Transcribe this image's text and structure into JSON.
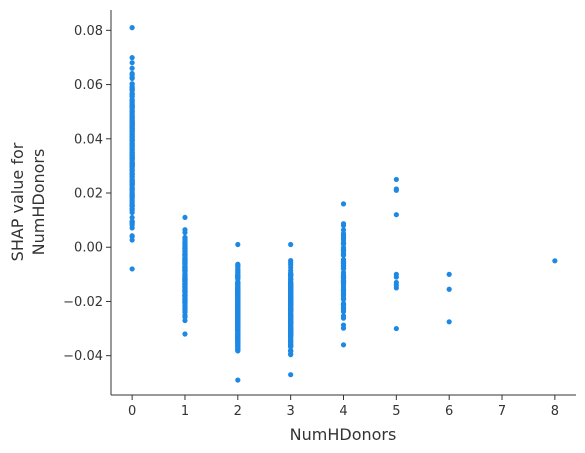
{
  "chart_data": {
    "type": "scatter",
    "xlabel": "NumHDonors",
    "ylabel_lines": [
      "SHAP value for",
      "NumHDonors"
    ],
    "xlim": [
      -0.4,
      8.4
    ],
    "ylim": [
      -0.0545,
      0.0875
    ],
    "x_ticks": [
      0,
      1,
      2,
      3,
      4,
      5,
      6,
      7,
      8
    ],
    "y_ticks": [
      -0.04,
      -0.02,
      0.0,
      0.02,
      0.04,
      0.06,
      0.08
    ],
    "y_tick_labels": [
      "−0.04",
      "−0.02",
      "0.00",
      "0.02",
      "0.04",
      "0.06",
      "0.08"
    ],
    "grid": false,
    "point_color": "#1e88e5",
    "groups": [
      {
        "x": 0,
        "y_min": -0.008,
        "y_max": 0.081,
        "count": 220
      },
      {
        "x": 1,
        "y_min": -0.032,
        "y_max": 0.011,
        "count": 200
      },
      {
        "x": 2,
        "y_min": -0.049,
        "y_max": 0.001,
        "count": 260
      },
      {
        "x": 3,
        "y_min": -0.047,
        "y_max": 0.001,
        "count": 230
      },
      {
        "x": 4,
        "y_min": -0.036,
        "y_max": 0.016,
        "count": 90
      }
    ],
    "points": [
      {
        "x": 5,
        "y": 0.025
      },
      {
        "x": 5,
        "y": 0.0215
      },
      {
        "x": 5,
        "y": 0.021
      },
      {
        "x": 5,
        "y": 0.012
      },
      {
        "x": 5,
        "y": -0.01
      },
      {
        "x": 5,
        "y": -0.011
      },
      {
        "x": 5,
        "y": -0.013
      },
      {
        "x": 5,
        "y": -0.014
      },
      {
        "x": 5,
        "y": -0.015
      },
      {
        "x": 5,
        "y": -0.03
      },
      {
        "x": 6,
        "y": -0.01
      },
      {
        "x": 6,
        "y": -0.0155
      },
      {
        "x": 6,
        "y": -0.0275
      },
      {
        "x": 8,
        "y": -0.005
      }
    ]
  }
}
